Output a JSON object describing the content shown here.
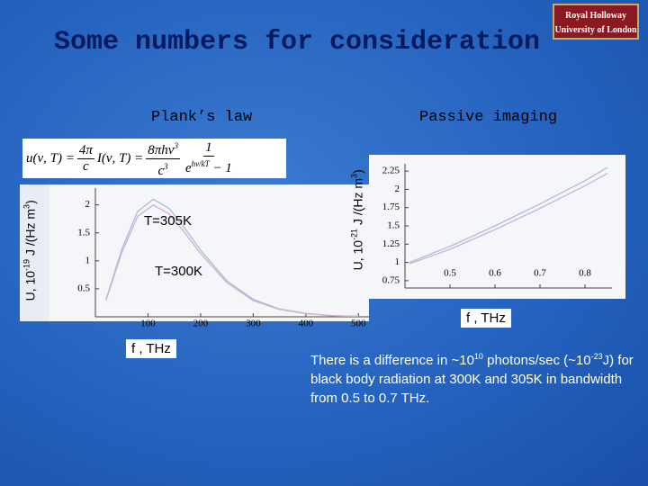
{
  "slide": {
    "title": "Some numbers for consideration",
    "logo": [
      "Royal Holloway",
      "University of London"
    ],
    "note": [
      "There is a difference in ~10",
      "10",
      " photons/sec (~10",
      "-23",
      "J) for black body radiation at 300K and 305K in bandwidth from 0.5 to 0.7 THz."
    ]
  },
  "chart_data": [
    {
      "type": "line",
      "title": "Plank’s law",
      "formula": [
        "u(ν, T) = ",
        "4π",
        "c",
        "I(ν, T) = ",
        "8πhν",
        "3",
        "c",
        "3",
        "1",
        "e",
        "hν",
        "kT",
        " − 1"
      ],
      "y_label": [
        "U, 10",
        "-19",
        " J /(Hz m",
        "3",
        ")"
      ],
      "x_label": "f , THz",
      "annotations": [
        "T=305K",
        "T=300K"
      ],
      "x": [
        20,
        50,
        80,
        110,
        140,
        170,
        200,
        250,
        300,
        350,
        400,
        450,
        500
      ],
      "series": [
        {
          "name": "T=305K",
          "color": "#a8bcd8",
          "values": [
            0.3,
            1.2,
            1.88,
            2.1,
            1.94,
            1.58,
            1.19,
            0.64,
            0.31,
            0.14,
            0.06,
            0.02,
            0.01
          ]
        },
        {
          "name": "T=300K",
          "color": "#d0b0d0",
          "values": [
            0.29,
            1.14,
            1.79,
            2.0,
            1.84,
            1.5,
            1.13,
            0.61,
            0.29,
            0.13,
            0.06,
            0.02,
            0.01
          ]
        }
      ],
      "xlim": [
        0,
        520
      ],
      "ylim": [
        0,
        2.3
      ],
      "xticks": [
        100,
        200,
        300,
        400,
        500
      ],
      "yticks": [
        0.5,
        1,
        1.5,
        2
      ]
    },
    {
      "type": "line",
      "title": "Passive imaging",
      "y_label": [
        "U, 10",
        "-21",
        " J /(Hz m",
        "3",
        ")"
      ],
      "x_label": "f , THz",
      "x": [
        0.41,
        0.5,
        0.6,
        0.7,
        0.8,
        0.85
      ],
      "series": [
        {
          "name": "T=305K",
          "color": "#a8bcd8",
          "values": [
            1.0,
            1.22,
            1.5,
            1.8,
            2.12,
            2.3
          ]
        },
        {
          "name": "T=300K",
          "color": "#d0b0d0",
          "values": [
            0.98,
            1.18,
            1.45,
            1.74,
            2.05,
            2.22
          ]
        }
      ],
      "xlim": [
        0.4,
        0.86
      ],
      "ylim": [
        0.65,
        2.35
      ],
      "xticks": [
        0.5,
        0.6,
        0.7,
        0.8
      ],
      "yticks": [
        0.75,
        1,
        1.25,
        1.5,
        1.75,
        2,
        2.25
      ]
    }
  ]
}
